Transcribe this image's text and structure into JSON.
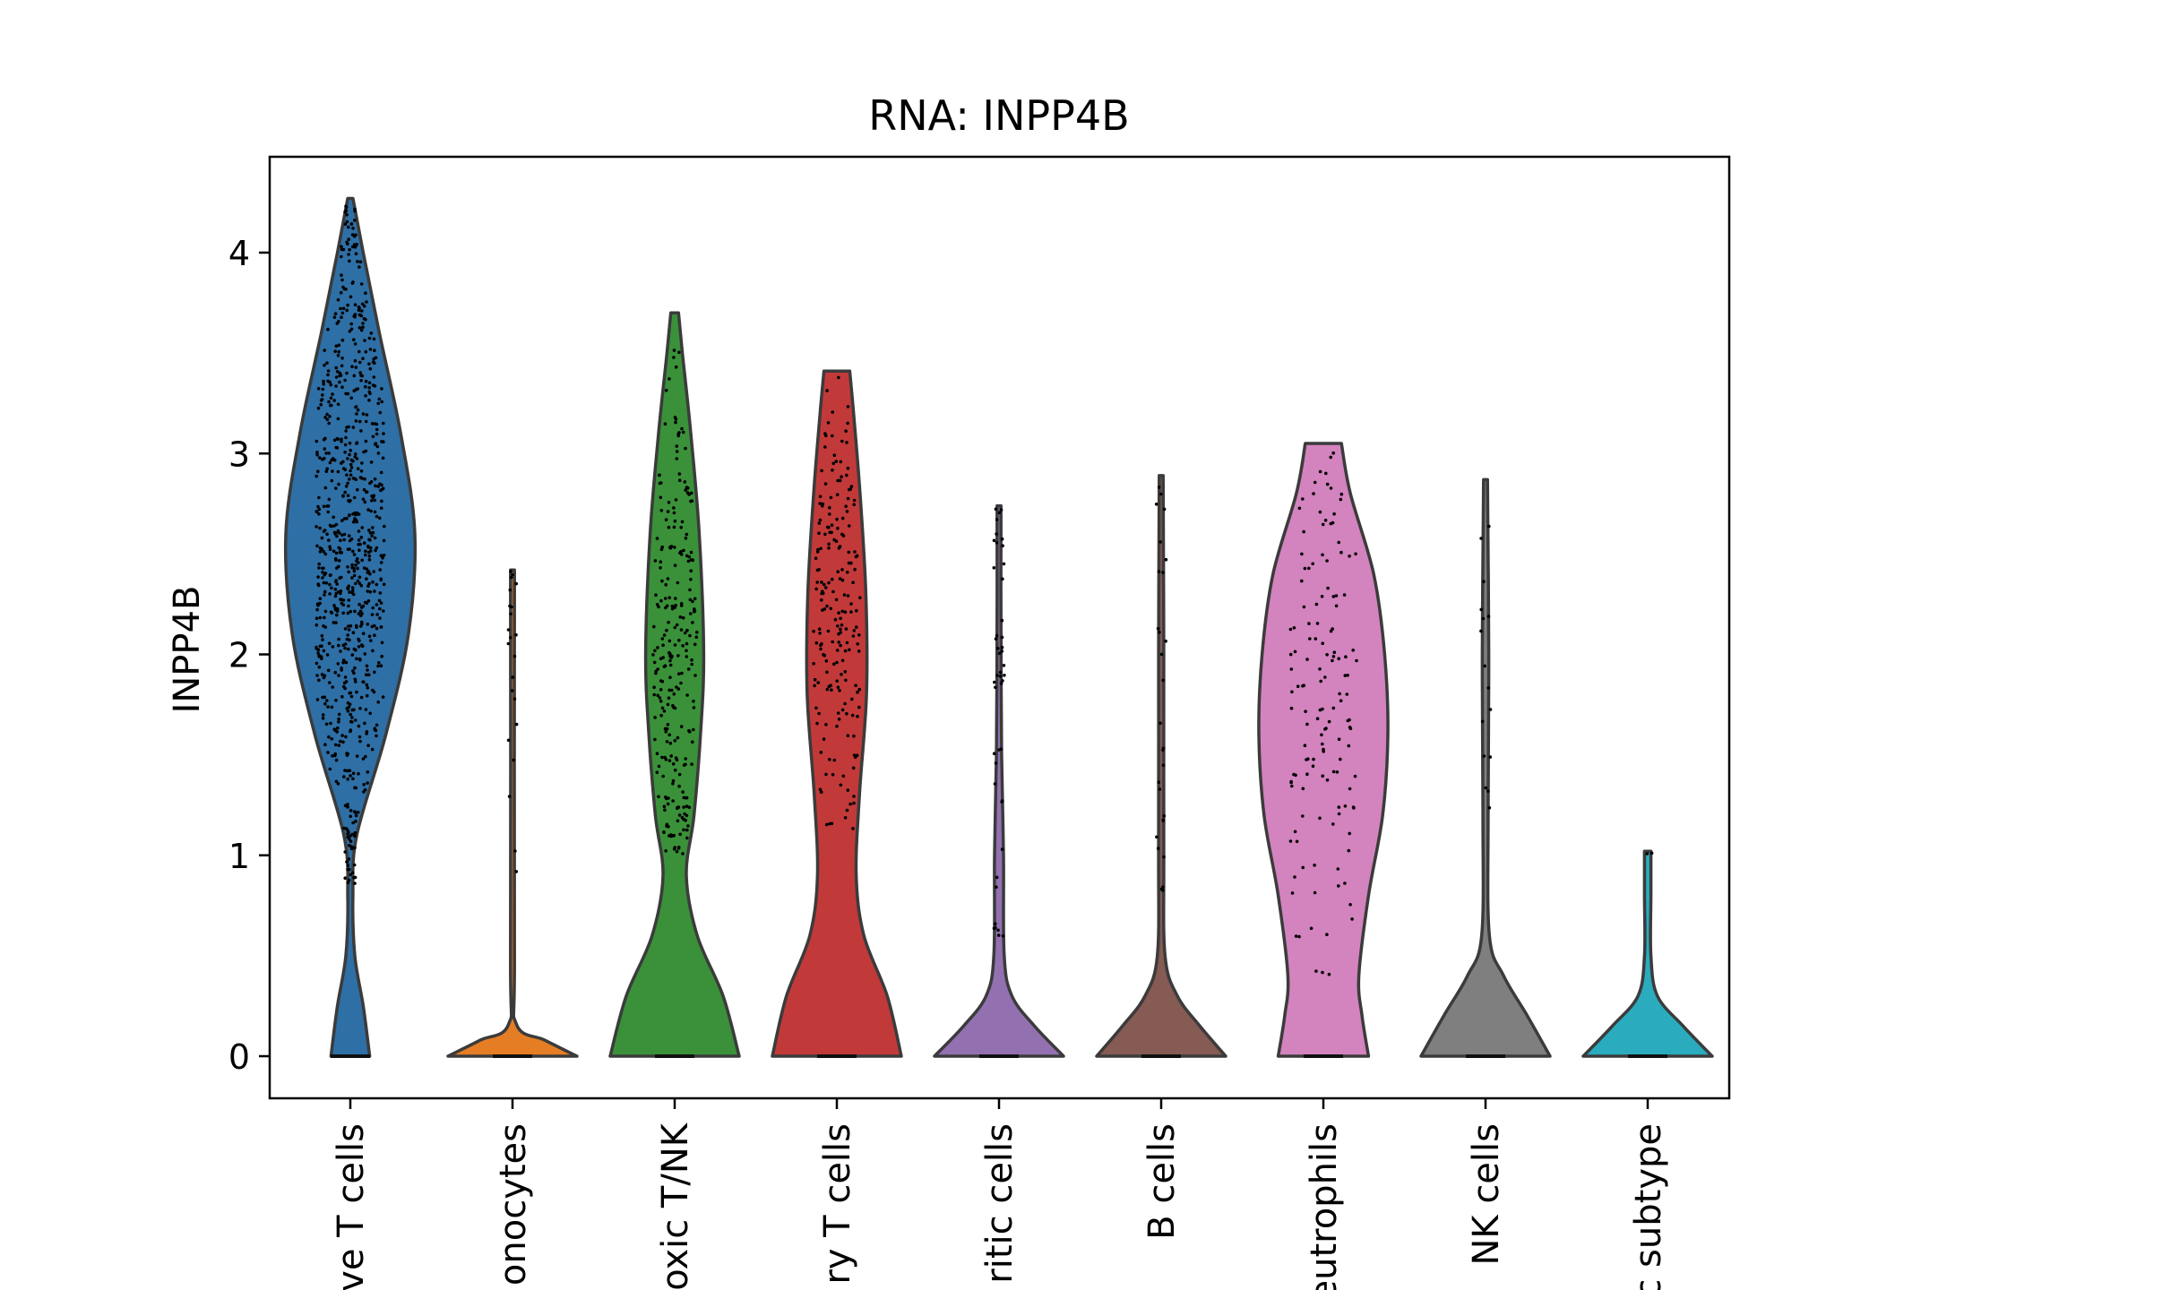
{
  "chart_data": {
    "type": "violin",
    "title": "RNA: INPP4B",
    "xlabel": "",
    "ylabel": "INPP4B",
    "ylim": [
      -0.2,
      4.5
    ],
    "yticks": [
      0,
      1,
      2,
      3,
      4
    ],
    "grid": false,
    "legend": "none",
    "categories": [
      {
        "label": "ve T cells",
        "color": "#2e6fa5",
        "max": 4.27,
        "profile": [
          [
            0,
            0.3
          ],
          [
            0.25,
            0.2
          ],
          [
            0.5,
            0.07
          ],
          [
            0.8,
            0.04
          ],
          [
            1.1,
            0.1
          ],
          [
            1.6,
            0.55
          ],
          [
            2.1,
            0.9
          ],
          [
            2.6,
            1.0
          ],
          [
            3.1,
            0.78
          ],
          [
            3.6,
            0.45
          ],
          [
            4.0,
            0.2
          ],
          [
            4.27,
            0.04
          ]
        ],
        "points": {
          "n": 800,
          "lo": 0.85,
          "hi": 4.25,
          "center": 2.5
        }
      },
      {
        "label": "onocytes",
        "color": "#e57d25",
        "max": 2.42,
        "profile": [
          [
            0,
            1.0
          ],
          [
            0.08,
            0.5
          ],
          [
            0.16,
            0.06
          ],
          [
            0.5,
            0.03
          ],
          [
            2.42,
            0.03
          ]
        ],
        "points": {
          "n": 22,
          "lo": 0.88,
          "hi": 2.42,
          "center": 1.5
        }
      },
      {
        "label": "oxic T/NK",
        "color": "#3a9139",
        "max": 3.7,
        "profile": [
          [
            0,
            1.0
          ],
          [
            0.3,
            0.75
          ],
          [
            0.6,
            0.35
          ],
          [
            0.9,
            0.18
          ],
          [
            1.2,
            0.3
          ],
          [
            1.6,
            0.4
          ],
          [
            2.0,
            0.45
          ],
          [
            2.6,
            0.38
          ],
          [
            3.1,
            0.25
          ],
          [
            3.5,
            0.12
          ],
          [
            3.7,
            0.06
          ]
        ],
        "points": {
          "n": 260,
          "lo": 1.0,
          "hi": 3.7,
          "center": 2.0
        }
      },
      {
        "label": "ry T cells",
        "color": "#c13a39",
        "max": 3.41,
        "profile": [
          [
            0,
            1.0
          ],
          [
            0.3,
            0.78
          ],
          [
            0.6,
            0.42
          ],
          [
            0.9,
            0.3
          ],
          [
            1.3,
            0.35
          ],
          [
            1.8,
            0.46
          ],
          [
            2.3,
            0.45
          ],
          [
            2.8,
            0.36
          ],
          [
            3.2,
            0.26
          ],
          [
            3.41,
            0.2
          ]
        ],
        "points": {
          "n": 200,
          "lo": 1.1,
          "hi": 3.41,
          "center": 2.2
        }
      },
      {
        "label": "ritic cells",
        "color": "#9371b1",
        "max": 2.74,
        "profile": [
          [
            0,
            1.0
          ],
          [
            0.15,
            0.55
          ],
          [
            0.3,
            0.2
          ],
          [
            0.5,
            0.08
          ],
          [
            1.0,
            0.07
          ],
          [
            1.5,
            0.04
          ],
          [
            2.2,
            0.03
          ],
          [
            2.74,
            0.03
          ]
        ],
        "points": {
          "n": 45,
          "lo": 0.58,
          "hi": 2.74,
          "center": 1.2
        }
      },
      {
        "label": "B cells",
        "color": "#855b53",
        "max": 2.89,
        "profile": [
          [
            0,
            1.0
          ],
          [
            0.15,
            0.6
          ],
          [
            0.3,
            0.25
          ],
          [
            0.5,
            0.06
          ],
          [
            1.0,
            0.04
          ],
          [
            2.0,
            0.04
          ],
          [
            2.89,
            0.03
          ]
        ],
        "points": {
          "n": 28,
          "lo": 0.82,
          "hi": 2.89,
          "center": 2.0
        }
      },
      {
        "label": "eutrophils",
        "color": "#d383be",
        "max": 3.05,
        "profile": [
          [
            0,
            0.7
          ],
          [
            0.2,
            0.6
          ],
          [
            0.4,
            0.55
          ],
          [
            0.8,
            0.7
          ],
          [
            1.2,
            0.92
          ],
          [
            1.6,
            1.0
          ],
          [
            2.0,
            0.95
          ],
          [
            2.4,
            0.78
          ],
          [
            2.8,
            0.42
          ],
          [
            3.05,
            0.28
          ]
        ],
        "points": {
          "n": 140,
          "lo": 0.35,
          "hi": 3.05,
          "center": 1.7
        }
      },
      {
        "label": "NK cells",
        "color": "#7f7f7f",
        "max": 2.87,
        "profile": [
          [
            0,
            1.0
          ],
          [
            0.2,
            0.65
          ],
          [
            0.4,
            0.28
          ],
          [
            0.6,
            0.06
          ],
          [
            1.2,
            0.04
          ],
          [
            2.0,
            0.05
          ],
          [
            2.87,
            0.03
          ]
        ],
        "points": {
          "n": 16,
          "lo": 1.18,
          "hi": 2.87,
          "center": 1.8
        }
      },
      {
        "label": "c subtype",
        "color": "#2aabbe",
        "max": 1.02,
        "profile": [
          [
            0,
            1.0
          ],
          [
            0.15,
            0.55
          ],
          [
            0.3,
            0.15
          ],
          [
            0.5,
            0.05
          ],
          [
            0.8,
            0.05
          ],
          [
            1.02,
            0.05
          ]
        ],
        "points": {
          "n": 2,
          "lo": 1.0,
          "hi": 1.02,
          "center": 1.01
        }
      }
    ]
  }
}
